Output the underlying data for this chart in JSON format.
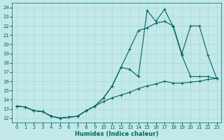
{
  "xlabel": "Humidex (Indice chaleur)",
  "bg_color": "#c2e8e8",
  "line_color": "#006666",
  "grid_color": "#a8d8d8",
  "xlim": [
    -0.5,
    23.5
  ],
  "ylim": [
    11.5,
    24.5
  ],
  "yticks": [
    12,
    13,
    14,
    15,
    16,
    17,
    18,
    19,
    20,
    21,
    22,
    23,
    24
  ],
  "xticks": [
    0,
    1,
    2,
    3,
    4,
    5,
    6,
    7,
    8,
    9,
    10,
    11,
    12,
    13,
    14,
    15,
    16,
    17,
    18,
    19,
    20,
    21,
    22,
    23
  ],
  "line1_x": [
    0,
    1,
    2,
    3,
    4,
    5,
    6,
    7,
    8,
    9,
    10,
    11,
    12,
    13,
    14,
    15,
    16,
    17,
    18,
    19,
    20,
    21,
    22,
    23
  ],
  "line1_y": [
    13.3,
    13.2,
    12.8,
    12.7,
    12.2,
    12.0,
    12.1,
    12.2,
    12.8,
    13.3,
    14.2,
    15.5,
    17.5,
    17.3,
    16.5,
    23.7,
    22.5,
    23.8,
    21.9,
    18.8,
    16.5,
    16.5,
    16.5,
    16.3
  ],
  "line2_x": [
    0,
    1,
    2,
    3,
    4,
    5,
    6,
    7,
    8,
    9,
    10,
    11,
    12,
    13,
    14,
    15,
    16,
    17,
    18,
    19,
    20,
    21,
    22,
    23
  ],
  "line2_y": [
    13.3,
    13.2,
    12.8,
    12.7,
    12.2,
    12.0,
    12.1,
    12.2,
    12.8,
    13.3,
    14.2,
    15.5,
    17.5,
    19.5,
    21.5,
    21.8,
    22.3,
    22.5,
    22.0,
    19.0,
    22.0,
    22.0,
    18.8,
    16.3
  ],
  "line3_x": [
    0,
    1,
    2,
    3,
    4,
    5,
    6,
    7,
    8,
    9,
    10,
    11,
    12,
    13,
    14,
    15,
    16,
    17,
    18,
    19,
    20,
    21,
    22,
    23
  ],
  "line3_y": [
    13.3,
    13.2,
    12.8,
    12.7,
    12.2,
    12.0,
    12.1,
    12.2,
    12.8,
    13.3,
    13.8,
    14.2,
    14.5,
    14.8,
    15.2,
    15.5,
    15.7,
    16.0,
    15.8,
    15.8,
    15.9,
    16.0,
    16.2,
    16.3
  ]
}
